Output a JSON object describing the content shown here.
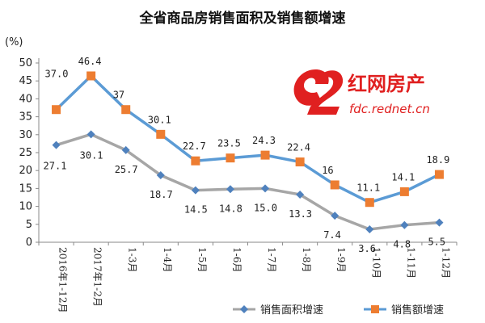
{
  "chart_data": {
    "type": "line",
    "title": "全省商品房销售面积及销售额增速",
    "ylabel": "(%)",
    "ylim": [
      0,
      50
    ],
    "yticks": [
      0,
      5,
      10,
      15,
      20,
      25,
      30,
      35,
      40,
      45,
      50
    ],
    "categories": [
      "2016年1-12月",
      "2017年1-2月",
      "1-3月",
      "1-4月",
      "1-5月",
      "1-6月",
      "1-7月",
      "1-8月",
      "1-9月",
      "1-10月",
      "1-11月",
      "1-12月"
    ],
    "grid": false,
    "legend_position": "bottom",
    "series": [
      {
        "name": "销售面积增速",
        "color": "#a6a6a6",
        "marker": "diamond",
        "marker_color": "#4f81bd",
        "values": [
          27.1,
          30.1,
          25.7,
          18.7,
          14.5,
          14.8,
          15.0,
          13.3,
          7.4,
          3.6,
          4.8,
          5.5
        ],
        "labels": [
          "27.1",
          "30.1",
          "25.7",
          "18.7",
          "14.5",
          "14.8",
          "15.0",
          "13.3",
          "7.4",
          "3.6",
          "4.8",
          "5.5"
        ]
      },
      {
        "name": "销售额增速",
        "color": "#5b9bd5",
        "marker": "square",
        "marker_color": "#ed7d31",
        "values": [
          37.0,
          46.4,
          37,
          30.1,
          22.7,
          23.5,
          24.3,
          22.4,
          16,
          11.1,
          14.1,
          18.9
        ],
        "labels": [
          "37.0",
          "46.4",
          "37",
          "30.1",
          "22.7",
          "23.5",
          "24.3",
          "22.4",
          "16",
          "11.1",
          "14.1",
          "18.9"
        ]
      }
    ]
  },
  "watermark": {
    "main": "红网房产",
    "sub": "fdc.rednet.cn",
    "color": "#e02020"
  }
}
